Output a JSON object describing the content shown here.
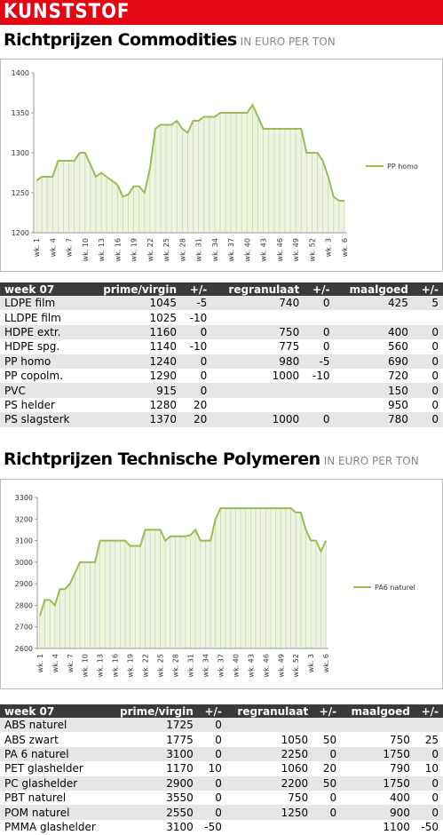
{
  "header": {
    "title": "KUNSTSTOF"
  },
  "chart_data": [
    {
      "type": "area",
      "title": "Richtprijzen Commodities",
      "subtitle": "IN EURO PER TON",
      "categories": [
        "wk. 1",
        null,
        null,
        "wk. 4",
        null,
        null,
        "wk. 7",
        null,
        null,
        "wk. 10",
        null,
        null,
        "wk. 13",
        null,
        null,
        "wk. 16",
        null,
        null,
        "wk. 19",
        null,
        null,
        "wk. 22",
        null,
        null,
        "wk. 25",
        null,
        null,
        "wk. 28",
        null,
        null,
        "wk. 31",
        null,
        null,
        "wk. 34",
        null,
        null,
        "wk. 37",
        null,
        null,
        "wk. 40",
        null,
        null,
        "wk. 43",
        null,
        null,
        "wk. 46",
        null,
        null,
        "wk. 49",
        null,
        null,
        "wk. 52",
        null,
        null,
        "wk. 3",
        null,
        null,
        "wk. 6"
      ],
      "series": [
        {
          "name": "PP homo",
          "color": "#9bbb59",
          "values": [
            1265,
            1270,
            1270,
            1270,
            1290,
            1290,
            1290,
            1290,
            1300,
            1300,
            1285,
            1270,
            1275,
            1270,
            1265,
            1260,
            1245,
            1248,
            1258,
            1258,
            1250,
            1280,
            1330,
            1335,
            1335,
            1335,
            1340,
            1330,
            1325,
            1340,
            1340,
            1345,
            1345,
            1345,
            1350,
            1350,
            1350,
            1350,
            1350,
            1350,
            1360,
            1345,
            1330,
            1330,
            1330,
            1330,
            1330,
            1330,
            1330,
            1330,
            1300,
            1300,
            1300,
            1290,
            1270,
            1245,
            1240,
            1240
          ]
        }
      ],
      "ylim": [
        1200,
        1400
      ],
      "yticks": [
        1200,
        1250,
        1300,
        1350,
        1400
      ],
      "grid": false,
      "legend": "right"
    },
    {
      "type": "area",
      "title": "Richtprijzen Technische Polymeren",
      "subtitle": "IN EURO PER TON",
      "categories": [
        "wk. 1",
        null,
        null,
        "wk. 4",
        null,
        null,
        "wk. 7",
        null,
        null,
        "wk. 10",
        null,
        null,
        "wk. 13",
        null,
        null,
        "wk. 16",
        null,
        null,
        "wk. 19",
        null,
        null,
        "wk. 22",
        null,
        null,
        "wk. 25",
        null,
        null,
        "wk. 28",
        null,
        null,
        "wk. 31",
        null,
        null,
        "wk. 34",
        null,
        null,
        "wk. 37",
        null,
        null,
        "wk. 40",
        null,
        null,
        "wk. 43",
        null,
        null,
        "wk. 46",
        null,
        null,
        "wk. 49",
        null,
        null,
        "wk. 52",
        null,
        null,
        "wk. 3",
        null,
        null,
        "wk. 6"
      ],
      "series": [
        {
          "name": "PA6 naturel",
          "color": "#9bbb59",
          "values": [
            2750,
            2825,
            2825,
            2800,
            2875,
            2875,
            2900,
            2950,
            3000,
            3000,
            3000,
            3000,
            3100,
            3100,
            3100,
            3100,
            3100,
            3100,
            3075,
            3075,
            3075,
            3150,
            3150,
            3150,
            3150,
            3100,
            3120,
            3120,
            3120,
            3120,
            3125,
            3150,
            3100,
            3100,
            3100,
            3200,
            3250,
            3250,
            3250,
            3250,
            3250,
            3250,
            3250,
            3250,
            3250,
            3250,
            3250,
            3250,
            3250,
            3250,
            3250,
            3230,
            3230,
            3150,
            3100,
            3100,
            3050,
            3100
          ]
        }
      ],
      "ylim": [
        2600,
        3300
      ],
      "yticks": [
        2600,
        2700,
        2800,
        2900,
        3000,
        3100,
        3200,
        3300
      ],
      "grid": false,
      "legend": "right"
    }
  ],
  "tables": [
    {
      "header": [
        "week 07",
        "prime/virgin",
        "+/-",
        "regranulaat",
        "+/-",
        "maalgoed",
        "+/-"
      ],
      "rows": [
        [
          "LDPE film",
          1045,
          -5,
          740,
          0,
          425,
          5
        ],
        [
          "LLDPE film",
          1025,
          -10,
          null,
          null,
          null,
          null
        ],
        [
          "HDPE extr.",
          1160,
          0,
          750,
          0,
          400,
          0
        ],
        [
          "HDPE spg.",
          1140,
          -10,
          775,
          0,
          560,
          0
        ],
        [
          "PP homo",
          1240,
          0,
          980,
          -5,
          690,
          0
        ],
        [
          "PP copolm.",
          1290,
          0,
          1000,
          -10,
          720,
          0
        ],
        [
          "PVC",
          915,
          0,
          null,
          null,
          150,
          0
        ],
        [
          "PS helder",
          1280,
          20,
          null,
          null,
          950,
          0
        ],
        [
          "PS slagsterk",
          1370,
          20,
          1000,
          0,
          780,
          0
        ]
      ]
    },
    {
      "header": [
        "week 07",
        "prime/virgin",
        "+/-",
        "regranulaat",
        "+/-",
        "maalgoed",
        "+/-"
      ],
      "rows": [
        [
          "ABS naturel",
          1725,
          0,
          null,
          null,
          null,
          null
        ],
        [
          "ABS zwart",
          1775,
          0,
          1050,
          50,
          750,
          25
        ],
        [
          "PA 6 naturel",
          3100,
          0,
          2250,
          0,
          1750,
          0
        ],
        [
          "PET glashelder",
          1170,
          10,
          1060,
          20,
          790,
          10
        ],
        [
          "PC glashelder",
          2900,
          0,
          2200,
          50,
          1750,
          0
        ],
        [
          "PBT naturel",
          3550,
          0,
          750,
          0,
          400,
          0
        ],
        [
          "POM naturel",
          2550,
          0,
          1250,
          0,
          900,
          0
        ],
        [
          "PMMA glashelder",
          3100,
          -50,
          null,
          null,
          1100,
          -50
        ]
      ]
    }
  ]
}
